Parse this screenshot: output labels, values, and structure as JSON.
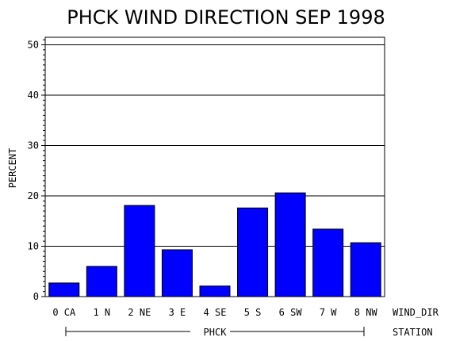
{
  "chart_data": {
    "type": "bar",
    "title": "PHCK WIND DIRECTION SEP 1998",
    "ylabel": "PERCENT",
    "xlabel": "WIND_DIR",
    "group_axis_label": "STATION",
    "group_name": "PHCK",
    "ylim": [
      0,
      51
    ],
    "yticks": [
      0,
      10,
      20,
      30,
      40,
      50
    ],
    "minor_tick_step": 1,
    "grid": true,
    "bar_color": "#0000ff",
    "categories": [
      "0 CA",
      "1 N",
      "2 NE",
      "3 E",
      "4 SE",
      "5 S",
      "6 SW",
      "7 W",
      "8 NW"
    ],
    "values": [
      2.7,
      6.0,
      18.1,
      9.3,
      2.1,
      17.6,
      20.6,
      13.4,
      10.7
    ]
  }
}
